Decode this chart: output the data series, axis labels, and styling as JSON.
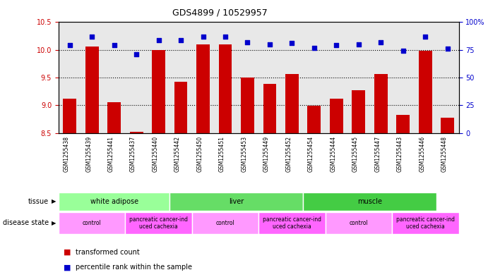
{
  "title": "GDS4899 / 10529957",
  "samples": [
    "GSM1255438",
    "GSM1255439",
    "GSM1255441",
    "GSM1255437",
    "GSM1255440",
    "GSM1255442",
    "GSM1255450",
    "GSM1255451",
    "GSM1255453",
    "GSM1255449",
    "GSM1255452",
    "GSM1255454",
    "GSM1255444",
    "GSM1255445",
    "GSM1255447",
    "GSM1255443",
    "GSM1255446",
    "GSM1255448"
  ],
  "bar_values": [
    9.12,
    10.06,
    9.05,
    8.52,
    10.0,
    9.43,
    10.1,
    10.1,
    9.5,
    9.38,
    9.56,
    8.99,
    9.12,
    9.27,
    9.57,
    8.83,
    9.99,
    8.78
  ],
  "dot_values": [
    79,
    87,
    79,
    71,
    84,
    84,
    87,
    87,
    82,
    80,
    81,
    77,
    79,
    80,
    82,
    74,
    87,
    76
  ],
  "ylim_left": [
    8.5,
    10.5
  ],
  "ylim_right": [
    0,
    100
  ],
  "yticks_left": [
    8.5,
    9.0,
    9.5,
    10.0,
    10.5
  ],
  "yticks_right": [
    0,
    25,
    50,
    75,
    100
  ],
  "bar_color": "#CC0000",
  "dot_color": "#0000CC",
  "tissue_groups": [
    {
      "label": "white adipose",
      "start": 0,
      "end": 5,
      "color": "#99FF99"
    },
    {
      "label": "liver",
      "start": 5,
      "end": 11,
      "color": "#66DD66"
    },
    {
      "label": "muscle",
      "start": 11,
      "end": 17,
      "color": "#44CC44"
    }
  ],
  "disease_groups": [
    {
      "label": "control",
      "start": 0,
      "end": 3,
      "color": "#FF99FF"
    },
    {
      "label": "pancreatic cancer-ind\nuced cachexia",
      "start": 3,
      "end": 6,
      "color": "#FF66FF"
    },
    {
      "label": "control",
      "start": 6,
      "end": 9,
      "color": "#FF99FF"
    },
    {
      "label": "pancreatic cancer-ind\nuced cachexia",
      "start": 9,
      "end": 12,
      "color": "#FF66FF"
    },
    {
      "label": "control",
      "start": 12,
      "end": 15,
      "color": "#FF99FF"
    },
    {
      "label": "pancreatic cancer-ind\nuced cachexia",
      "start": 15,
      "end": 18,
      "color": "#FF66FF"
    }
  ],
  "legend_items": [
    {
      "label": "transformed count",
      "color": "#CC0000",
      "marker": "s"
    },
    {
      "label": "percentile rank within the sample",
      "color": "#0000CC",
      "marker": "s"
    }
  ],
  "tissue_label": "tissue",
  "disease_label": "disease state",
  "background_color": "#ffffff",
  "plot_bg_color": "#e8e8e8"
}
